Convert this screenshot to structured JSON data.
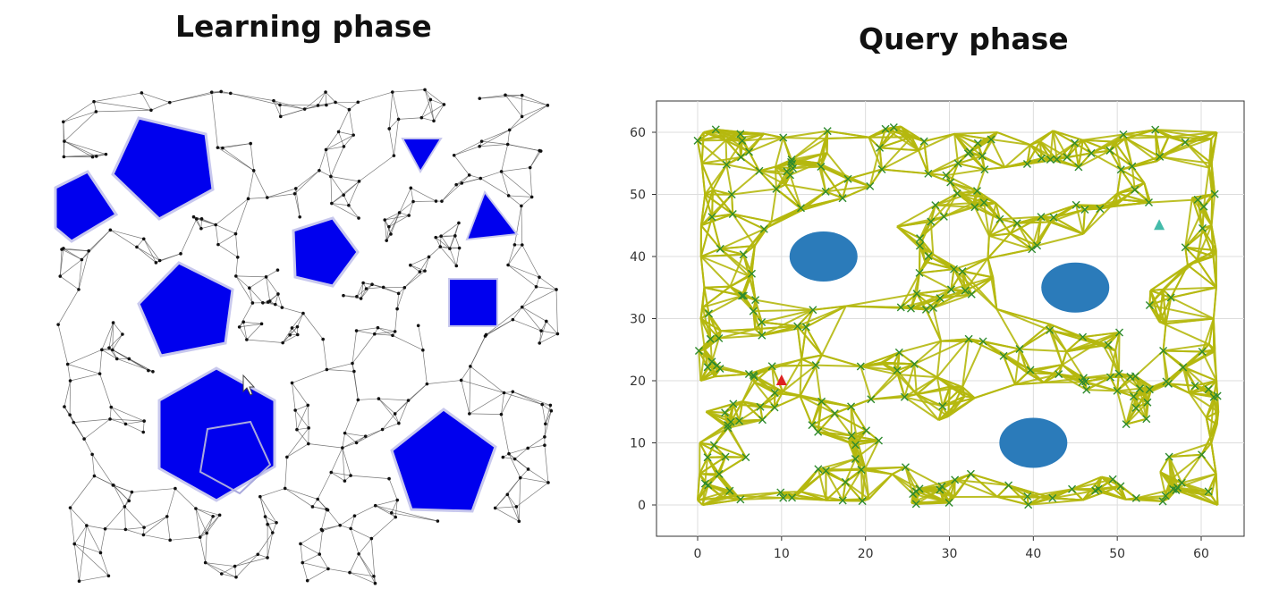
{
  "titles": {
    "learning": "Learning phase",
    "query": "Query phase"
  },
  "learning_panel": {
    "obstacle_color": "#0000ee",
    "edge_color": "#555555",
    "node_color": "#111111",
    "obstacles": [
      "square-tilted",
      "pentagon-large",
      "triangle",
      "triangle",
      "pentagon",
      "pentagon",
      "square",
      "hexagon",
      "pentagon"
    ]
  },
  "query_panel": {
    "edge_color": "#b5b80e",
    "sample_marker": "x",
    "sample_color": "#2e8b2e",
    "obstacle_color": "#2b7bba",
    "start_marker": {
      "shape": "triangle",
      "color": "#dd2222",
      "x": 10,
      "y": 20
    },
    "goal_marker": {
      "shape": "triangle",
      "color": "#44bbaa",
      "x": 55,
      "y": 45
    },
    "obstacles": [
      {
        "shape": "ellipse",
        "cx": 15,
        "cy": 40
      },
      {
        "shape": "ellipse",
        "cx": 45,
        "cy": 35
      },
      {
        "shape": "ellipse",
        "cx": 40,
        "cy": 10
      }
    ],
    "x_ticks": [
      "0",
      "10",
      "20",
      "30",
      "40",
      "50",
      "60"
    ],
    "y_ticks": [
      "0",
      "10",
      "20",
      "30",
      "40",
      "50",
      "60"
    ],
    "xlim": [
      -5,
      65
    ],
    "ylim": [
      -5,
      65
    ],
    "grid": true
  }
}
